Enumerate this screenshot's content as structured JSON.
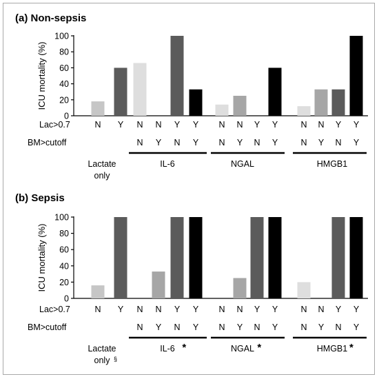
{
  "chart_data": [
    {
      "type": "bar",
      "title": "(a) Non-sepsis",
      "ylabel": "ICU mortality (%)",
      "ylim": [
        0,
        100
      ],
      "yticks": [
        0,
        20,
        40,
        60,
        80,
        100
      ],
      "row_labels": {
        "lac": "Lac>0.7",
        "bm": "BM>cutoff"
      },
      "groups": [
        {
          "name": "Lactate",
          "name2": "only",
          "marker": "",
          "sup": "",
          "bars": [
            {
              "lac": "N",
              "bm": "",
              "value": 18,
              "color": "#c6c6c6"
            },
            {
              "lac": "Y",
              "bm": "",
              "value": 60,
              "color": "#5b5b5b"
            }
          ]
        },
        {
          "name": "IL-6",
          "name2": "",
          "marker": "",
          "sup": "",
          "bars": [
            {
              "lac": "N",
              "bm": "N",
              "value": 66,
              "color": "#dedede"
            },
            {
              "lac": "N",
              "bm": "Y",
              "value": 0,
              "color": "#a6a6a6"
            },
            {
              "lac": "Y",
              "bm": "N",
              "value": 100,
              "color": "#5b5b5b"
            },
            {
              "lac": "Y",
              "bm": "Y",
              "value": 33,
              "color": "#000000"
            }
          ]
        },
        {
          "name": "NGAL",
          "name2": "",
          "marker": "",
          "sup": "",
          "bars": [
            {
              "lac": "N",
              "bm": "N",
              "value": 14,
              "color": "#dedede"
            },
            {
              "lac": "N",
              "bm": "Y",
              "value": 25,
              "color": "#a6a6a6"
            },
            {
              "lac": "Y",
              "bm": "N",
              "value": 0,
              "color": "#5b5b5b"
            },
            {
              "lac": "Y",
              "bm": "Y",
              "value": 60,
              "color": "#000000"
            }
          ]
        },
        {
          "name": "HMGB1",
          "name2": "",
          "marker": "",
          "sup": "",
          "bars": [
            {
              "lac": "N",
              "bm": "N",
              "value": 12,
              "color": "#dedede"
            },
            {
              "lac": "N",
              "bm": "Y",
              "value": 33,
              "color": "#a6a6a6"
            },
            {
              "lac": "Y",
              "bm": "N",
              "value": 33,
              "color": "#5b5b5b"
            },
            {
              "lac": "Y",
              "bm": "Y",
              "value": 100,
              "color": "#000000"
            }
          ]
        }
      ]
    },
    {
      "type": "bar",
      "title": "(b) Sepsis",
      "ylabel": "ICU mortality (%)",
      "ylim": [
        0,
        100
      ],
      "yticks": [
        0,
        20,
        40,
        60,
        80,
        100
      ],
      "row_labels": {
        "lac": "Lac>0.7",
        "bm": "BM>cutoff"
      },
      "groups": [
        {
          "name": "Lactate",
          "name2": "only",
          "marker": "",
          "sup": "§",
          "bars": [
            {
              "lac": "N",
              "bm": "",
              "value": 16,
              "color": "#c6c6c6"
            },
            {
              "lac": "Y",
              "bm": "",
              "value": 100,
              "color": "#5b5b5b"
            }
          ]
        },
        {
          "name": "IL-6",
          "name2": "",
          "marker": "*",
          "sup": "",
          "bars": [
            {
              "lac": "N",
              "bm": "N",
              "value": 0,
              "color": "#dedede"
            },
            {
              "lac": "N",
              "bm": "Y",
              "value": 33,
              "color": "#a6a6a6"
            },
            {
              "lac": "Y",
              "bm": "N",
              "value": 100,
              "color": "#5b5b5b"
            },
            {
              "lac": "Y",
              "bm": "Y",
              "value": 100,
              "color": "#000000"
            }
          ]
        },
        {
          "name": "NGAL",
          "name2": "",
          "marker": "*",
          "sup": "",
          "bars": [
            {
              "lac": "N",
              "bm": "N",
              "value": 0,
              "color": "#dedede"
            },
            {
              "lac": "N",
              "bm": "Y",
              "value": 25,
              "color": "#a6a6a6"
            },
            {
              "lac": "Y",
              "bm": "N",
              "value": 100,
              "color": "#5b5b5b"
            },
            {
              "lac": "Y",
              "bm": "Y",
              "value": 100,
              "color": "#000000"
            }
          ]
        },
        {
          "name": "HMGB1",
          "name2": "",
          "marker": "*",
          "sup": "",
          "bars": [
            {
              "lac": "N",
              "bm": "N",
              "value": 20,
              "color": "#dedede"
            },
            {
              "lac": "N",
              "bm": "Y",
              "value": 0,
              "color": "#a6a6a6"
            },
            {
              "lac": "Y",
              "bm": "N",
              "value": 100,
              "color": "#5b5b5b"
            },
            {
              "lac": "Y",
              "bm": "Y",
              "value": 100,
              "color": "#000000"
            }
          ]
        }
      ]
    }
  ]
}
